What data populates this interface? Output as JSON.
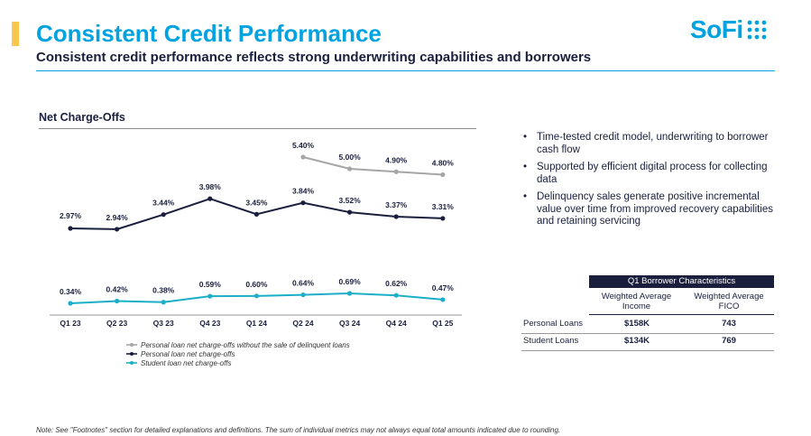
{
  "header": {
    "title": "Consistent Credit Performance",
    "subtitle": "Consistent credit performance reflects strong underwriting capabilities and borrowers",
    "logo_text": "SoFi",
    "accent_color": "#00a3e0",
    "bar_color": "#f9c74f",
    "navy_color": "#1a1f3d"
  },
  "chart_data": {
    "type": "line",
    "title": "Net Charge-Offs",
    "categories": [
      "Q1 23",
      "Q2 23",
      "Q3 23",
      "Q4 23",
      "Q1 24",
      "Q2 24",
      "Q3 24",
      "Q4 24",
      "Q1 25"
    ],
    "series": [
      {
        "name": "Personal loan net charge-offs without the sale of delinquent loans",
        "color": "#a6a6a6",
        "values": [
          null,
          null,
          null,
          null,
          null,
          5.4,
          5.0,
          4.9,
          4.8
        ],
        "labels": [
          null,
          null,
          null,
          null,
          null,
          "5.40%",
          "5.00%",
          "4.90%",
          "4.80%"
        ]
      },
      {
        "name": "Personal loan net charge-offs",
        "color": "#1a1f3d",
        "values": [
          2.97,
          2.94,
          3.44,
          3.98,
          3.45,
          3.84,
          3.52,
          3.37,
          3.31
        ],
        "labels": [
          "2.97%",
          "2.94%",
          "3.44%",
          "3.98%",
          "3.45%",
          "3.84%",
          "3.52%",
          "3.37%",
          "3.31%"
        ]
      },
      {
        "name": "Student loan net charge-offs",
        "color": "#1bafc7",
        "values": [
          0.34,
          0.42,
          0.38,
          0.59,
          0.6,
          0.64,
          0.69,
          0.62,
          0.47
        ],
        "labels": [
          "0.34%",
          "0.42%",
          "0.38%",
          "0.59%",
          "0.60%",
          "0.64%",
          "0.69%",
          "0.62%",
          "0.47%"
        ]
      }
    ],
    "legend_position": "bottom-center"
  },
  "bullets": [
    "Time-tested credit model, underwriting to borrower cash flow",
    "Supported by efficient digital process for collecting data",
    "Delinquency sales generate positive incremental value over time from improved recovery capabilities and retaining servicing"
  ],
  "borrower_table": {
    "header": "Q1 Borrower Characteristics",
    "columns": [
      "Weighted Average Income",
      "Weighted Average FICO"
    ],
    "rows": [
      {
        "name": "Personal Loans",
        "income": "$158K",
        "fico": "743"
      },
      {
        "name": "Student Loans",
        "income": "$134K",
        "fico": "769"
      }
    ]
  },
  "footnote": "Note: See \"Footnotes\" section for detailed explanations and definitions. The sum of individual metrics may not always equal total amounts indicated due to rounding."
}
